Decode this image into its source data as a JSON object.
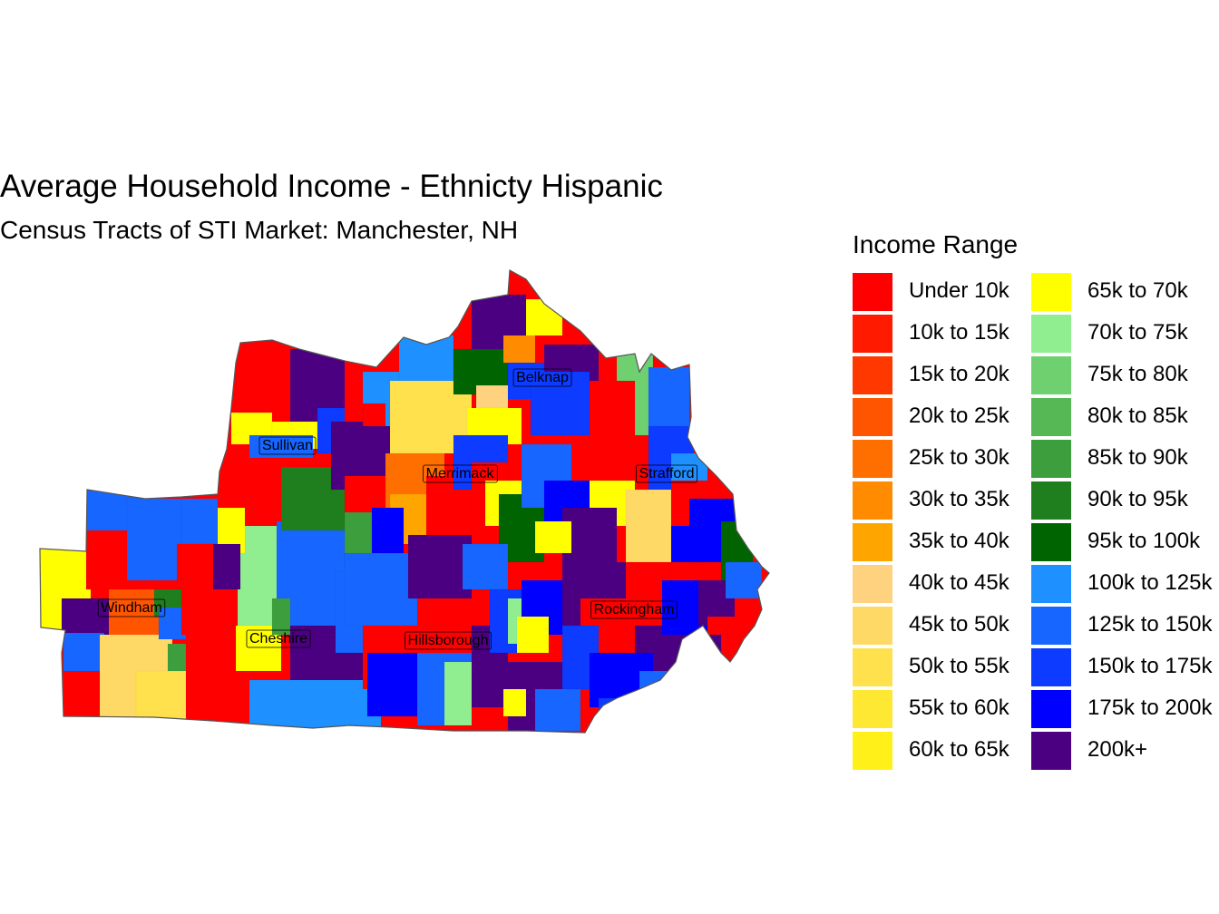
{
  "title": "Average Household Income - Ethnicty Hispanic",
  "subtitle": "Census Tracts of STI Market: Manchester, NH",
  "legend": {
    "title": "Income Range",
    "items": [
      {
        "label": "Under 10k",
        "color": "#ff0000"
      },
      {
        "label": "10k to 15k",
        "color": "#ff1a00"
      },
      {
        "label": "15k to 20k",
        "color": "#ff3800"
      },
      {
        "label": "20k to 25k",
        "color": "#ff5500"
      },
      {
        "label": "25k to 30k",
        "color": "#ff6f00"
      },
      {
        "label": "30k to 35k",
        "color": "#ff8c00"
      },
      {
        "label": "35k to 40k",
        "color": "#ffa500"
      },
      {
        "label": "40k to 45k",
        "color": "#ffd27f"
      },
      {
        "label": "45k to 50k",
        "color": "#ffd966"
      },
      {
        "label": "50k to 55k",
        "color": "#ffe14d"
      },
      {
        "label": "55k to 60k",
        "color": "#ffe833"
      },
      {
        "label": "60k to 65k",
        "color": "#fff01a"
      },
      {
        "label": "65k to 70k",
        "color": "#ffff00"
      },
      {
        "label": "70k to 75k",
        "color": "#90ee90"
      },
      {
        "label": "75k to 80k",
        "color": "#6fd06f"
      },
      {
        "label": "80k to 85k",
        "color": "#55b855"
      },
      {
        "label": "85k to 90k",
        "color": "#3c9e3c"
      },
      {
        "label": "90k to 95k",
        "color": "#1f7f1f"
      },
      {
        "label": "95k to 100k",
        "color": "#006400"
      },
      {
        "label": "100k to 125k",
        "color": "#1e90ff"
      },
      {
        "label": "125k to 150k",
        "color": "#1766ff"
      },
      {
        "label": "150k to 175k",
        "color": "#0d3bff"
      },
      {
        "label": "175k to 200k",
        "color": "#0000ff"
      },
      {
        "label": "200k+",
        "color": "#4b0082"
      }
    ]
  },
  "counties": [
    {
      "name": "Sullivan"
    },
    {
      "name": "Belknap"
    },
    {
      "name": "Merrimack"
    },
    {
      "name": "Strafford"
    },
    {
      "name": "Windham"
    },
    {
      "name": "Cheshire"
    },
    {
      "name": "Hillsborough"
    },
    {
      "name": "Rockingham"
    }
  ]
}
